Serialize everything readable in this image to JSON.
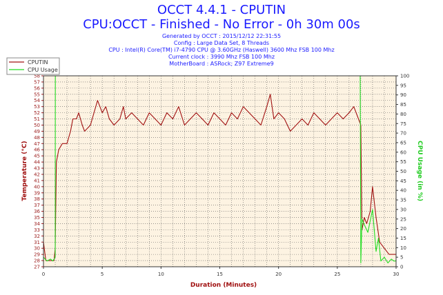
{
  "header": {
    "title": "OCCT 4.4.1 - CPUTIN",
    "subtitle": "CPU:OCCT - Finished - No Error - 0h 30m 00s",
    "info_lines": [
      "Generated by OCCT : 2015/12/12 22:31:55",
      "Config : Large Data Set, 8 Threads",
      "CPU : Intel(R) Core(TM) i7-4790 CPU @ 3.60GHz (Haswell) 3600 Mhz FSB 100 Mhz",
      "Current clock : 3990 Mhz FSB 100 Mhz",
      "MotherBoard : ASRock; Z97 Extreme9"
    ]
  },
  "colors": {
    "temperature": "#a01010",
    "cpu_usage": "#22dd22",
    "plot_bg": "#fdf3e2",
    "grid": "#555555",
    "axis_left": "#9b1a1a",
    "axis_right": "#22cc22"
  },
  "chart_data": {
    "type": "line",
    "xlabel": "Duration (Minutes)",
    "ylabel_left": "Temperature (°C)",
    "ylabel_right": "CPU Usage (in %)",
    "xlim": [
      0,
      30
    ],
    "ylim_left": [
      27,
      58
    ],
    "ylim_right": [
      0,
      100
    ],
    "x_ticks": [
      0,
      5,
      10,
      15,
      20,
      25,
      30
    ],
    "y_ticks_left": [
      27,
      28,
      29,
      30,
      31,
      32,
      33,
      34,
      35,
      36,
      37,
      38,
      39,
      40,
      41,
      42,
      43,
      44,
      45,
      46,
      47,
      48,
      49,
      50,
      51,
      52,
      53,
      54,
      55,
      56,
      57,
      58
    ],
    "y_ticks_right": [
      0,
      5,
      10,
      15,
      20,
      25,
      30,
      35,
      40,
      45,
      50,
      55,
      60,
      65,
      70,
      75,
      80,
      85,
      90,
      95,
      100
    ],
    "grid": true,
    "legend_position": "top-left",
    "series": [
      {
        "name": "CPUTIN",
        "axis": "left",
        "x": [
          0,
          0.2,
          0.4,
          0.6,
          0.8,
          0.9,
          1.0,
          1.1,
          1.3,
          1.6,
          2.0,
          2.3,
          2.5,
          2.8,
          3.0,
          3.3,
          3.5,
          4.0,
          4.3,
          4.6,
          4.8,
          5.0,
          5.3,
          5.6,
          6.0,
          6.5,
          6.8,
          7.0,
          7.5,
          8.0,
          8.5,
          9.0,
          9.5,
          10.0,
          10.5,
          11.0,
          11.5,
          12.0,
          12.5,
          13.0,
          13.5,
          14.0,
          14.5,
          15.0,
          15.5,
          16.0,
          16.5,
          17.0,
          17.5,
          18.0,
          18.5,
          19.0,
          19.3,
          19.6,
          20.0,
          20.5,
          21.0,
          21.5,
          22.0,
          22.5,
          23.0,
          23.5,
          24.0,
          24.5,
          25.0,
          25.5,
          26.0,
          26.4,
          26.8,
          27.0,
          27.1,
          27.3,
          27.5,
          27.8,
          28.0,
          28.3,
          28.6,
          29.0,
          29.4,
          29.7,
          30.0
        ],
        "y": [
          31,
          28,
          28,
          28,
          28,
          28,
          30,
          44,
          46,
          47,
          47,
          49,
          51,
          51,
          52,
          50,
          49,
          50,
          52,
          54,
          53,
          52,
          53,
          51,
          50,
          51,
          53,
          51,
          52,
          51,
          50,
          52,
          51,
          50,
          52,
          51,
          53,
          50,
          51,
          52,
          51,
          50,
          52,
          51,
          50,
          52,
          51,
          53,
          52,
          51,
          50,
          53,
          55,
          51,
          52,
          51,
          49,
          50,
          51,
          50,
          52,
          51,
          50,
          51,
          52,
          51,
          52,
          53,
          51,
          50,
          33,
          35,
          34,
          36,
          40,
          35,
          31,
          30,
          29,
          29,
          29
        ]
      },
      {
        "name": "CPU Usage",
        "axis": "right",
        "x": [
          0,
          0.3,
          0.6,
          0.8,
          1.0,
          1.01,
          26.95,
          27.0,
          27.1,
          27.3,
          27.6,
          28.0,
          28.3,
          28.5,
          28.7,
          29.0,
          29.3,
          29.6,
          29.8,
          30.0
        ],
        "y": [
          5,
          3,
          4,
          3,
          5,
          100,
          100,
          2,
          25,
          22,
          18,
          30,
          8,
          15,
          3,
          5,
          2,
          4,
          3,
          3
        ]
      }
    ]
  }
}
